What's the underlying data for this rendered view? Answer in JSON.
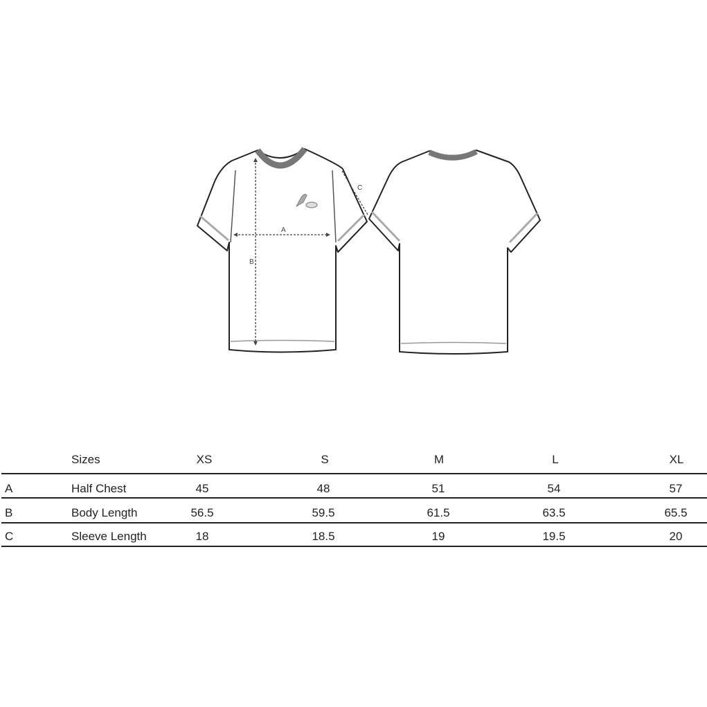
{
  "diagram": {
    "measure_labels": [
      "A",
      "B",
      "C"
    ],
    "views": [
      "front",
      "back"
    ]
  },
  "table": {
    "header": {
      "label": "Sizes",
      "sizes": [
        "XS",
        "S",
        "M",
        "L",
        "XL"
      ]
    },
    "rows": [
      {
        "key": "A",
        "label": "Half Chest",
        "values": [
          "45",
          "48",
          "51",
          "54",
          "57"
        ]
      },
      {
        "key": "B",
        "label": "Body Length",
        "values": [
          "56.5",
          "59.5",
          "61.5",
          "63.5",
          "65.5"
        ]
      },
      {
        "key": "C",
        "label": "Sleeve Length",
        "values": [
          "18",
          "18.5",
          "19",
          "19.5",
          "20"
        ]
      }
    ]
  }
}
